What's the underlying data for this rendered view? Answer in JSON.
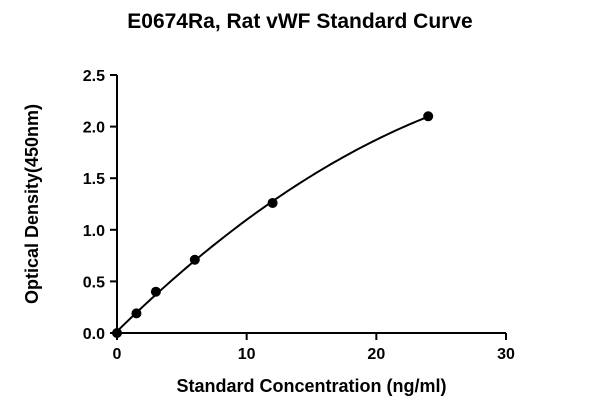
{
  "chart_data": {
    "type": "scatter",
    "title": "E0674Ra, Rat vWF Standard Curve",
    "xlabel": "Standard Concentration (ng/ml)",
    "ylabel": "Optical Density(450nm)",
    "xlim": [
      0,
      30
    ],
    "ylim": [
      0,
      2.5
    ],
    "x_ticks": [
      0,
      10,
      20,
      30
    ],
    "y_ticks": [
      "0.0",
      "0.5",
      "1.0",
      "1.5",
      "2.0",
      "2.5"
    ],
    "grid": false,
    "series": [
      {
        "points": [
          {
            "x": 0,
            "y": 0.0
          },
          {
            "x": 1.5,
            "y": 0.19
          },
          {
            "x": 3,
            "y": 0.4
          },
          {
            "x": 6,
            "y": 0.71
          },
          {
            "x": 12,
            "y": 1.26
          },
          {
            "x": 24,
            "y": 2.1
          }
        ],
        "fit_curve": true
      }
    ],
    "colors": {
      "marker": "#000000",
      "line": "#000000"
    }
  }
}
